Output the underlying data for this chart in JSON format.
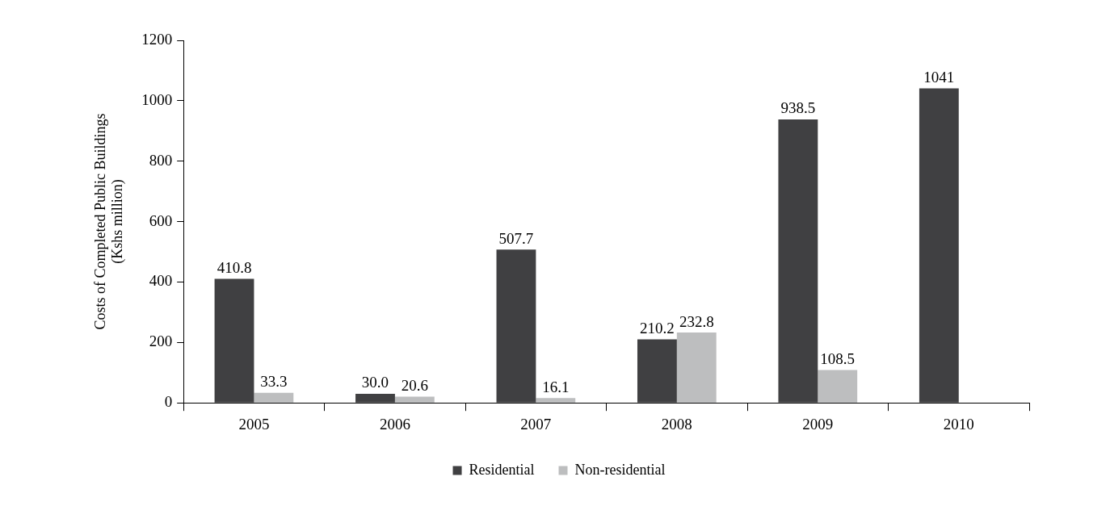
{
  "chart_data": {
    "type": "bar",
    "ylabel": "Costs of Completed Public Buildings\n(Kshs million)",
    "categories": [
      "2005",
      "2006",
      "2007",
      "2008",
      "2009",
      "2010"
    ],
    "series": [
      {
        "name": "Residential",
        "color": "#404042",
        "values": [
          410.8,
          30.0,
          507.7,
          210.2,
          938.5,
          1041
        ],
        "value_labels": [
          "410.8",
          "30.0",
          "507.7",
          "210.2",
          "938.5",
          "1041"
        ]
      },
      {
        "name": "Non-residential",
        "color": "#bdbebf",
        "values": [
          33.3,
          20.6,
          16.1,
          232.8,
          108.5,
          null
        ],
        "value_labels": [
          "33.3",
          "20.6",
          "16.1",
          "232.8",
          "108.5",
          null
        ]
      }
    ],
    "ylim": [
      0,
      1200
    ],
    "yticks": [
      0,
      200,
      400,
      600,
      800,
      1000,
      1200
    ],
    "grid": false,
    "legend": "bottom"
  }
}
